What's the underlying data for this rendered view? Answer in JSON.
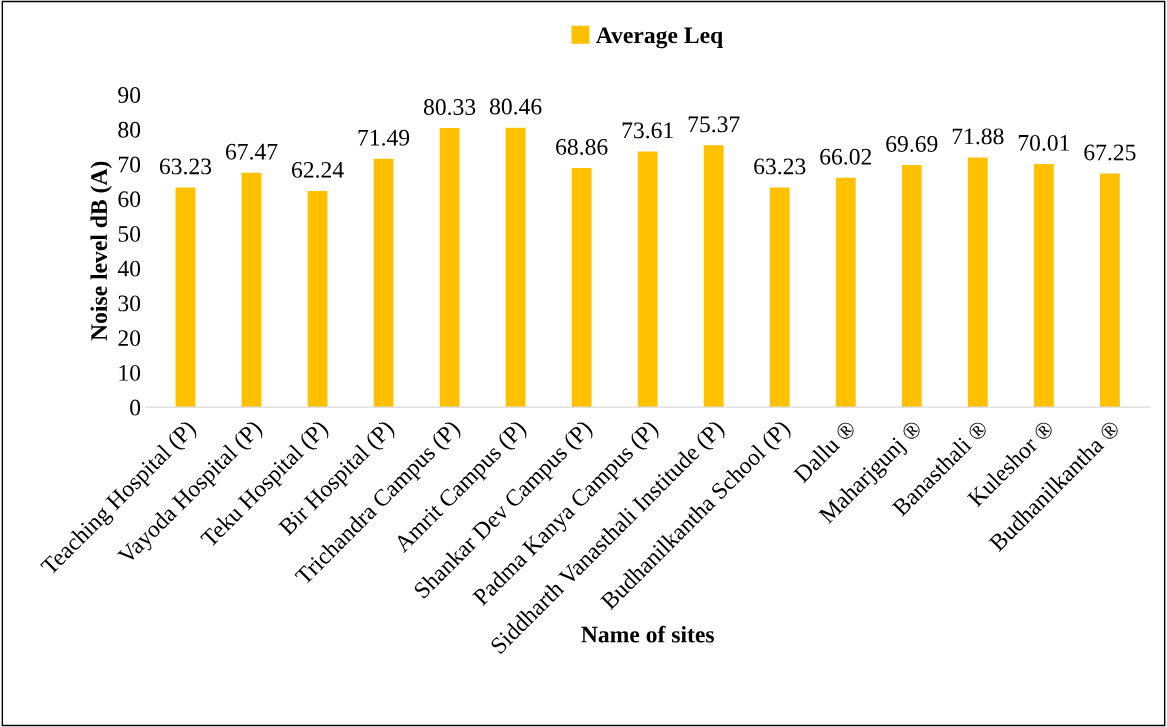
{
  "chart_data": {
    "type": "bar",
    "categories": [
      "Teaching Hospital (P)",
      "Vayoda Hospital (P)",
      "Teku Hospital (P)",
      "Bir Hospital (P)",
      "Trichandra Campus (P)",
      "Amrit Campus (P)",
      "Shankar Dev Campus (P)",
      "Padma Kanya Campus (P)",
      "Siddharth Vanasthali Institude (P)",
      "Budhanilkantha School (P)",
      "Dallu ®",
      "Maharjgunj ®",
      "Banasthali ®",
      "Kuleshor ®",
      "Budhanilkantha ®"
    ],
    "series": [
      {
        "name": "Average Leq",
        "color": "#ffc000",
        "values": [
          63.23,
          67.47,
          62.24,
          71.49,
          80.33,
          80.46,
          68.86,
          73.61,
          75.37,
          63.23,
          66.02,
          69.69,
          71.88,
          70.01,
          67.25
        ]
      }
    ],
    "xlabel": "Name of sites",
    "ylabel": "Noise level dB (A)",
    "ylim": [
      0,
      90
    ],
    "yticks": [
      0,
      10,
      20,
      30,
      40,
      50,
      60,
      70,
      80,
      90
    ],
    "data_labels": true,
    "legend": "top",
    "grid": false
  }
}
